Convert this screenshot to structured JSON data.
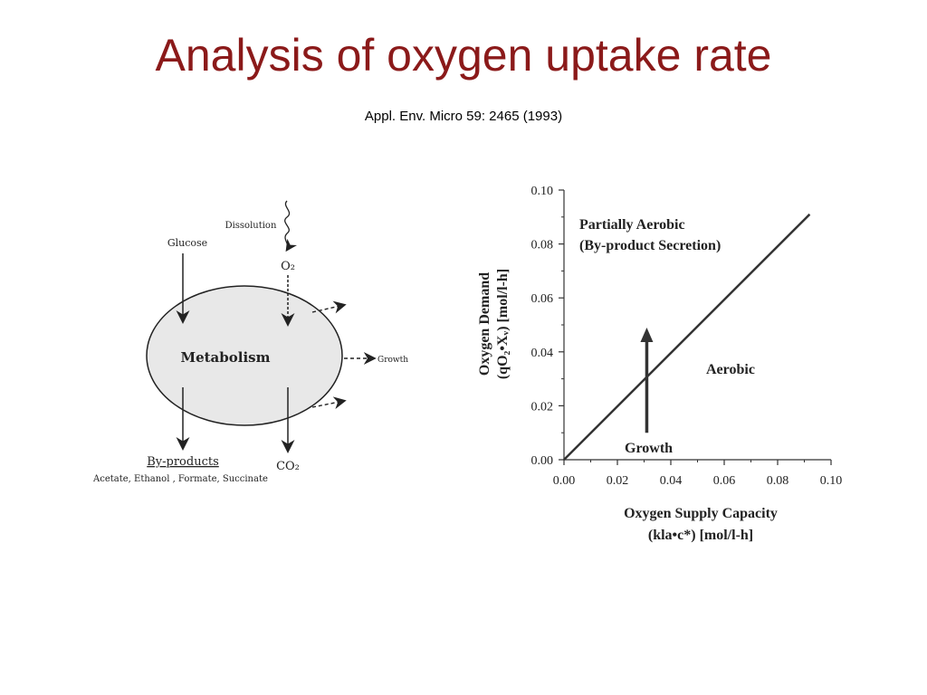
{
  "slide": {
    "title": "Analysis of oxygen uptake rate",
    "citation": "Appl. Env. Micro 59: 2465 (1993)"
  },
  "diagram": {
    "center_label": "Metabolism",
    "glucose": "Glucose",
    "dissolution": "Dissolution",
    "o2": "O₂",
    "growth": "Growth",
    "byproducts": "By-products",
    "byproducts_list": "Acetate, Ethanol , Formate, Succinate",
    "co2": "CO₂"
  },
  "chart_data": {
    "type": "line",
    "xlabel_line1": "Oxygen Supply Capacity",
    "xlabel_line2": "(kla•c*) [mol/l-h]",
    "ylabel_line1": "Oxygen Demand",
    "ylabel_line2": "(qO₂•Xᵥ) [mol/l-h]",
    "xlim": [
      0.0,
      0.1
    ],
    "ylim": [
      0.0,
      0.1
    ],
    "x_ticks": [
      "0.00",
      "0.02",
      "0.04",
      "0.06",
      "0.08",
      "0.10"
    ],
    "y_ticks": [
      "0.00",
      "0.02",
      "0.04",
      "0.06",
      "0.08",
      "0.10"
    ],
    "series": [
      {
        "x": [
          0.0,
          0.092
        ],
        "y": [
          0.0,
          0.091
        ]
      }
    ],
    "annotations": {
      "partially_aerobic_1": "Partially Aerobic",
      "partially_aerobic_2": "(By-product Secretion)",
      "aerobic": "Aerobic",
      "growth": "Growth"
    },
    "growth_arrow": {
      "x": 0.031,
      "y_from": 0.01,
      "y_to": 0.049
    }
  }
}
